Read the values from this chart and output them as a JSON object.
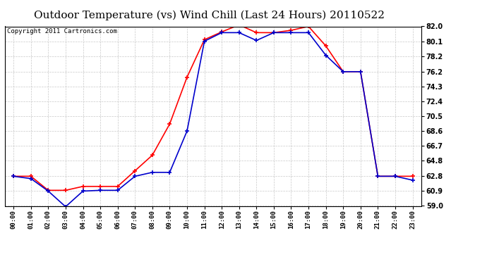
{
  "title": "Outdoor Temperature (vs) Wind Chill (Last 24 Hours) 20110522",
  "copyright": "Copyright 2011 Cartronics.com",
  "x_labels": [
    "00:00",
    "01:00",
    "02:00",
    "03:00",
    "04:00",
    "05:00",
    "06:00",
    "07:00",
    "08:00",
    "09:00",
    "10:00",
    "11:00",
    "12:00",
    "13:00",
    "14:00",
    "15:00",
    "16:00",
    "17:00",
    "18:00",
    "19:00",
    "20:00",
    "21:00",
    "22:00",
    "23:00"
  ],
  "temp": [
    62.8,
    62.8,
    61.0,
    61.0,
    61.5,
    61.5,
    61.5,
    63.5,
    65.5,
    69.5,
    75.5,
    80.3,
    81.3,
    82.2,
    81.2,
    81.2,
    81.5,
    82.0,
    79.5,
    76.2,
    76.2,
    62.8,
    62.8,
    62.8
  ],
  "windchill": [
    62.8,
    62.5,
    60.9,
    58.9,
    60.9,
    61.0,
    61.0,
    62.8,
    63.3,
    63.3,
    68.6,
    80.1,
    81.2,
    81.2,
    80.2,
    81.2,
    81.2,
    81.2,
    78.3,
    76.2,
    76.2,
    62.8,
    62.8,
    62.3
  ],
  "ylim": [
    59.0,
    82.0
  ],
  "yticks": [
    59.0,
    60.9,
    62.8,
    64.8,
    66.7,
    68.6,
    70.5,
    72.4,
    74.3,
    76.2,
    78.2,
    80.1,
    82.0
  ],
  "bg_color": "#ffffff",
  "plot_bg_color": "#ffffff",
  "grid_color": "#bbbbbb",
  "temp_color": "#ff0000",
  "windchill_color": "#0000cc",
  "title_fontsize": 11,
  "copyright_fontsize": 6.5
}
